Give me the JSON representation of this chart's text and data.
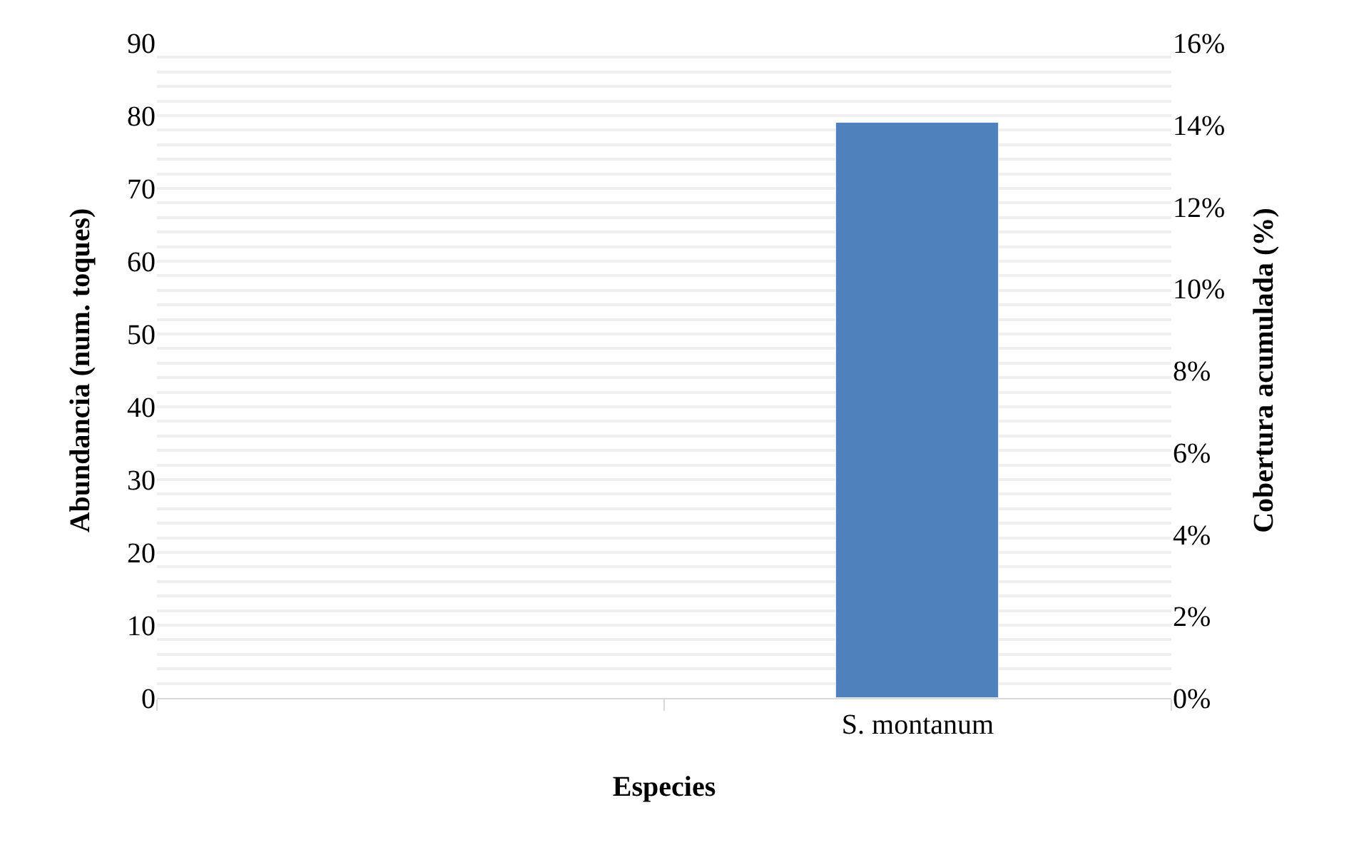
{
  "chart_data": {
    "type": "bar",
    "xlabel": "Especies",
    "ylabel": "Abundancia (num. toques)",
    "y2label": "Cobertura acumulada (%)",
    "categories": [
      null,
      "S. montanum"
    ],
    "series": [
      {
        "color": "#4f81bd",
        "values": [
          null,
          79
        ]
      }
    ],
    "ylim": [
      0,
      90
    ],
    "yticks": [
      0,
      {
        "value": 2,
        "label": null
      },
      {
        "value": 4,
        "label": null
      },
      {
        "value": 6,
        "label": null
      },
      {
        "value": 8,
        "label": null
      },
      10,
      {
        "value": 12,
        "label": null
      },
      {
        "value": 14,
        "label": null
      },
      {
        "value": 16,
        "label": null
      },
      {
        "value": 18,
        "label": null
      },
      20,
      {
        "value": 22,
        "label": null
      },
      {
        "value": 24,
        "label": null
      },
      {
        "value": 26,
        "label": null
      },
      {
        "value": 28,
        "label": null
      },
      30,
      {
        "value": 32,
        "label": null
      },
      {
        "value": 34,
        "label": null
      },
      {
        "value": 36,
        "label": null
      },
      {
        "value": 38,
        "label": null
      },
      40,
      {
        "value": 42,
        "label": null
      },
      {
        "value": 44,
        "label": null
      },
      {
        "value": 46,
        "label": null
      },
      {
        "value": 48,
        "label": null
      },
      50,
      {
        "value": 52,
        "label": null
      },
      {
        "value": 54,
        "label": null
      },
      {
        "value": 56,
        "label": null
      },
      {
        "value": 58,
        "label": null
      },
      60,
      {
        "value": 62,
        "label": null
      },
      {
        "value": 64,
        "label": null
      },
      {
        "value": 66,
        "label": null
      },
      {
        "value": 68,
        "label": null
      },
      70,
      {
        "value": 72,
        "label": null
      },
      {
        "value": 74,
        "label": null
      },
      {
        "value": 76,
        "label": null
      },
      {
        "value": 78,
        "label": null
      },
      80,
      {
        "value": 82,
        "label": null
      },
      {
        "value": 84,
        "label": null
      },
      {
        "value": 86,
        "label": null
      },
      {
        "value": 88,
        "label": null
      },
      90
    ],
    "y2lim": [
      0,
      16
    ],
    "y2ticks": [
      {
        "value": 0,
        "label": "0%"
      },
      {
        "value": 2,
        "label": "2%"
      },
      {
        "value": 4,
        "label": "4%"
      },
      {
        "value": 6,
        "label": "6%"
      },
      {
        "value": 8,
        "label": "8%"
      },
      {
        "value": 10,
        "label": "10%"
      },
      {
        "value": 12,
        "label": "12%"
      },
      {
        "value": 14,
        "label": "14%"
      },
      {
        "value": 16,
        "label": "16%"
      }
    ],
    "grid": "y",
    "legend": false
  }
}
